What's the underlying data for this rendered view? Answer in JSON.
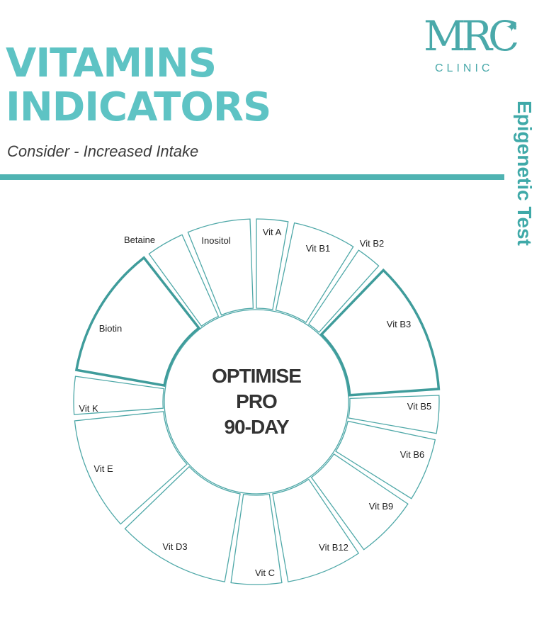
{
  "header": {
    "title_line1": "VITAMINS",
    "title_line2": "INDICATORS",
    "subtitle": "Consider - Increased Intake",
    "side_title": "Epigenetic Test"
  },
  "logo": {
    "mark": "MRC",
    "clinic": "CLINIC",
    "star": "✦"
  },
  "wheel": {
    "center_lines": [
      "OPTIMISE",
      "PRO",
      "90-DAY"
    ],
    "segments": [
      {
        "label": "Vit A",
        "highlighted": false
      },
      {
        "label": "Vit B1",
        "highlighted": false
      },
      {
        "label": "Vit B2",
        "highlighted": false
      },
      {
        "label": "Vit B3",
        "highlighted": true
      },
      {
        "label": "Vit B5",
        "highlighted": false
      },
      {
        "label": "Vit B6",
        "highlighted": false
      },
      {
        "label": "Vit B9",
        "highlighted": false
      },
      {
        "label": "Vit B12",
        "highlighted": false
      },
      {
        "label": "Vit C",
        "highlighted": false
      },
      {
        "label": "Vit D3",
        "highlighted": false
      },
      {
        "label": "Vit E",
        "highlighted": false
      },
      {
        "label": "Vit K",
        "highlighted": false
      },
      {
        "label": "Biotin",
        "highlighted": true
      },
      {
        "label": "Betaine",
        "highlighted": false
      },
      {
        "label": "Inositol",
        "highlighted": false
      }
    ]
  }
}
